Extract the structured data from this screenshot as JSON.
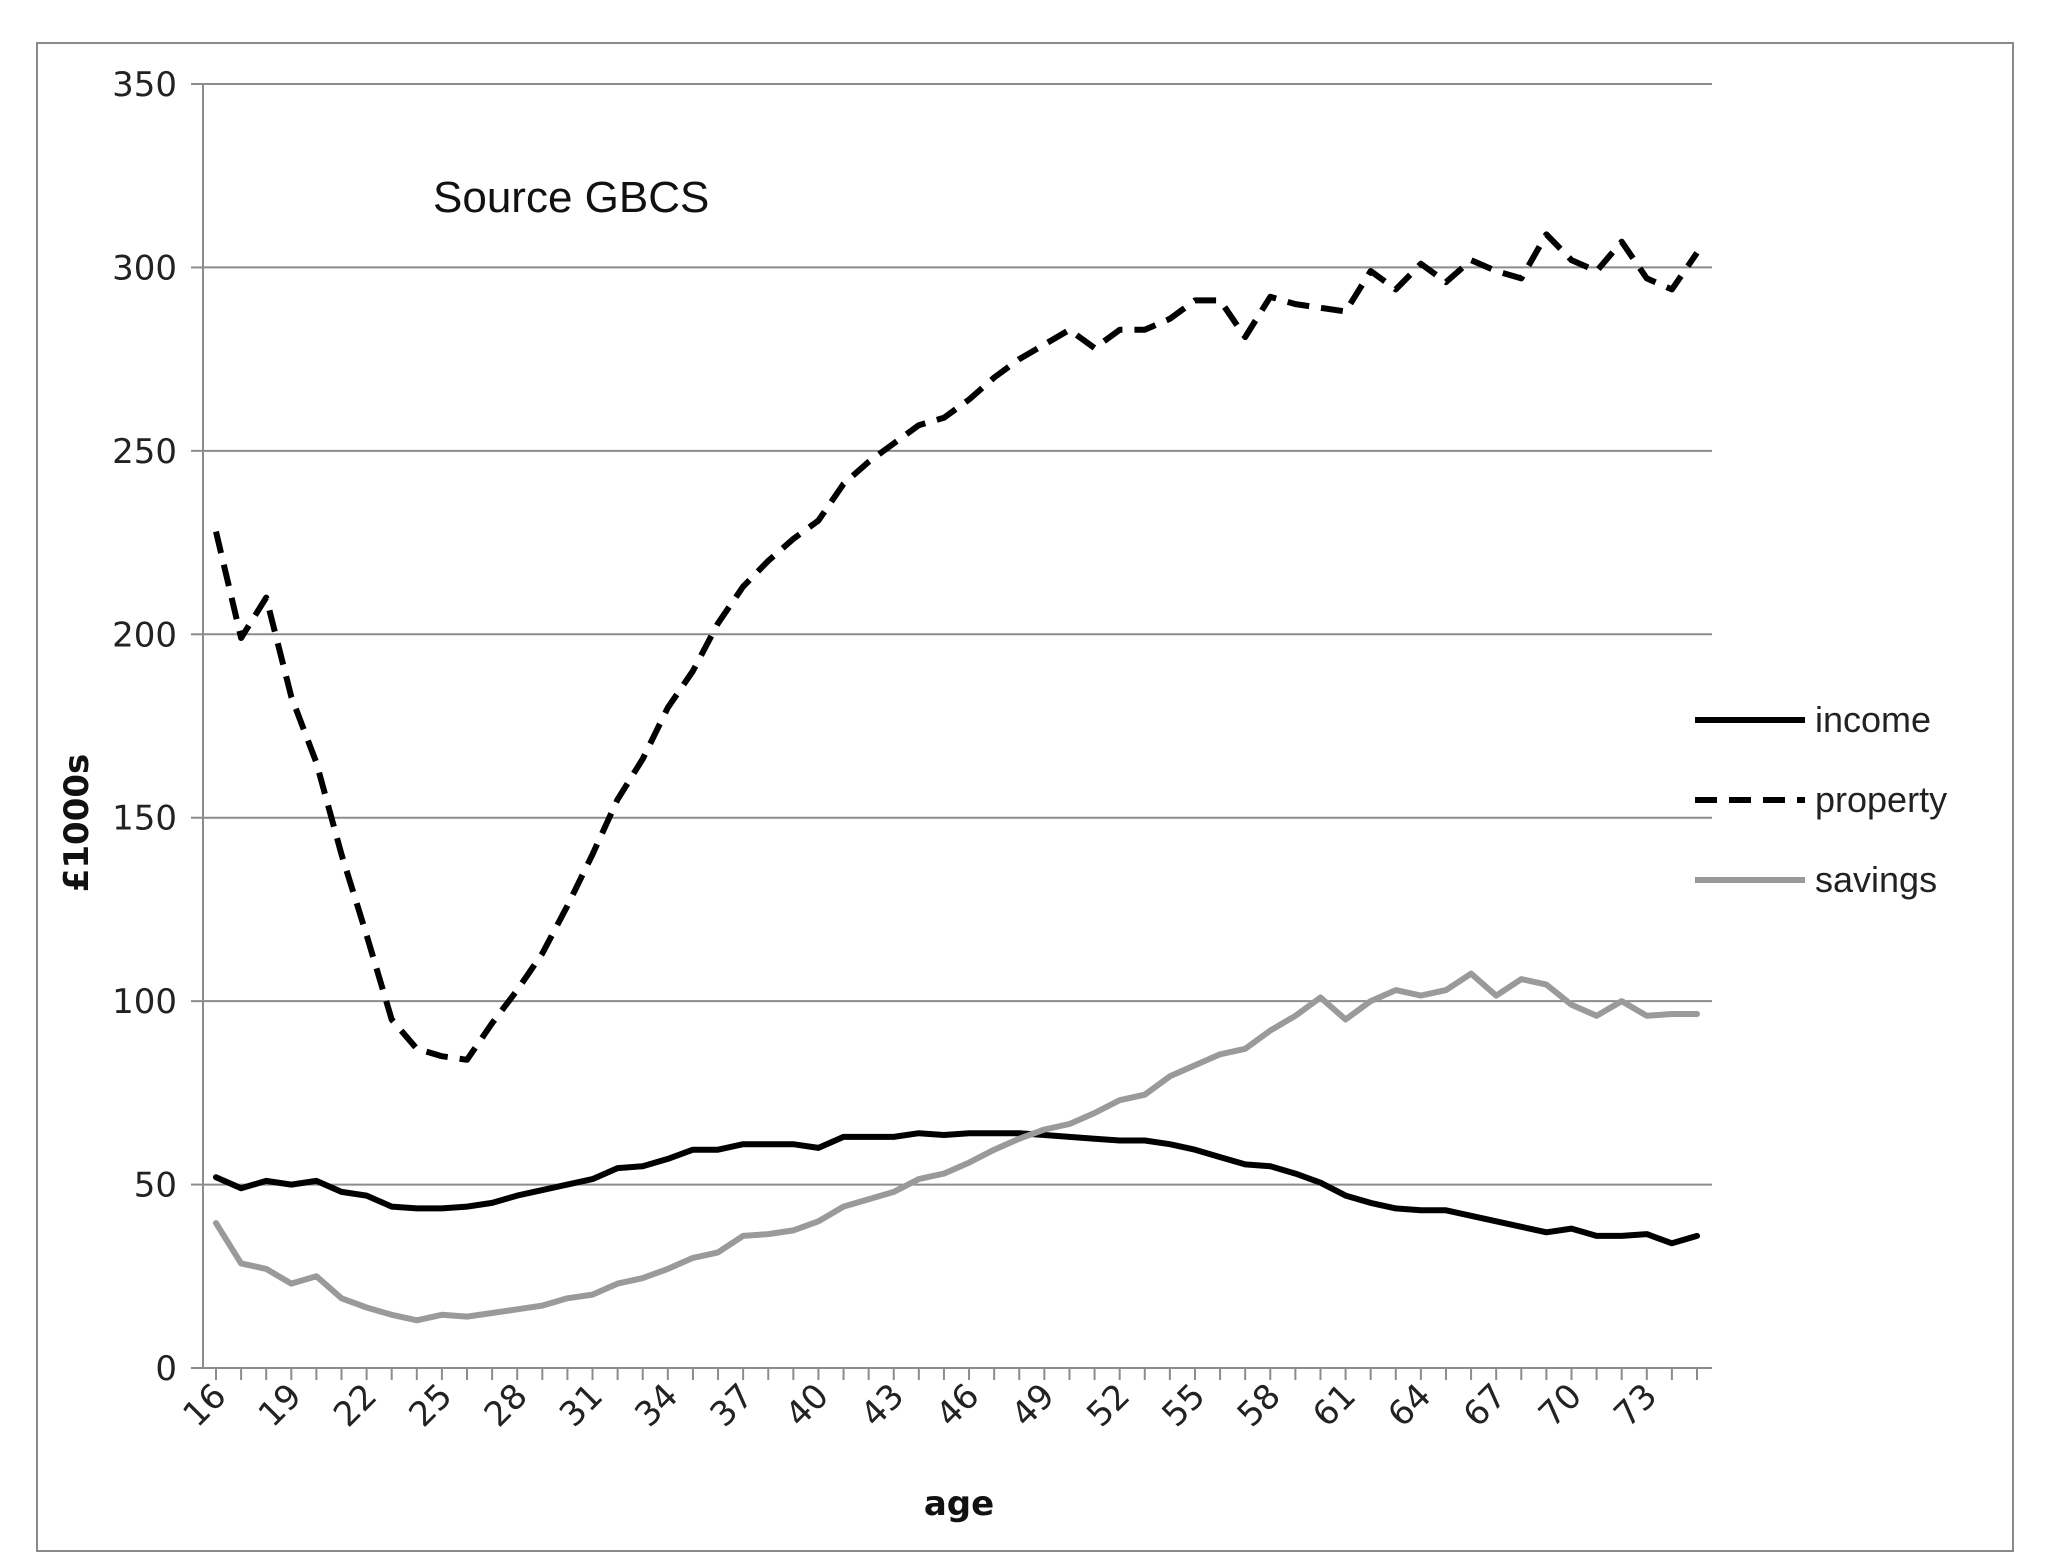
{
  "chart_data": {
    "type": "line",
    "title": "",
    "annotation": "Source GBCS",
    "xlabel": "age",
    "ylabel": "£1000s",
    "xlim": [
      16,
      75
    ],
    "ylim": [
      0,
      350
    ],
    "y_ticks": [
      0,
      50,
      100,
      150,
      200,
      250,
      300,
      350
    ],
    "x_tick_labels": [
      "16",
      "19",
      "22",
      "25",
      "28",
      "31",
      "34",
      "37",
      "40",
      "43",
      "46",
      "49",
      "52",
      "55",
      "58",
      "61",
      "64",
      "67",
      "70",
      "73"
    ],
    "grid": "horizontal",
    "legend_position": "right",
    "x": [
      16,
      17,
      18,
      19,
      20,
      21,
      22,
      23,
      24,
      25,
      26,
      27,
      28,
      29,
      30,
      31,
      32,
      33,
      34,
      35,
      36,
      37,
      38,
      39,
      40,
      41,
      42,
      43,
      44,
      45,
      46,
      47,
      48,
      49,
      50,
      51,
      52,
      53,
      54,
      55,
      56,
      57,
      58,
      59,
      60,
      61,
      62,
      63,
      64,
      65,
      66,
      67,
      68,
      69,
      70,
      71,
      72,
      73,
      74,
      75
    ],
    "series": [
      {
        "name": "income",
        "style": "solid",
        "color": "#000000",
        "values": [
          52,
          49,
          51,
          50,
          51,
          48,
          47,
          44,
          43.5,
          43.5,
          44,
          45,
          47,
          48.5,
          50,
          51.5,
          54.5,
          55,
          57,
          59.5,
          59.5,
          61,
          61,
          61,
          60,
          63,
          63,
          63,
          64,
          63.5,
          64,
          64,
          64,
          63.5,
          63,
          62.5,
          62,
          62,
          61,
          59.5,
          57.5,
          55.5,
          55,
          53,
          50.5,
          47,
          45,
          43.5,
          43,
          43,
          41.5,
          40,
          38.5,
          37,
          38,
          36,
          36,
          36.5,
          34,
          36
        ]
      },
      {
        "name": "property",
        "style": "dashed",
        "color": "#000000",
        "values": [
          228,
          199,
          210,
          183,
          165,
          140,
          118,
          95,
          87,
          85,
          84,
          94,
          103,
          113,
          126,
          140,
          155,
          166,
          180,
          190,
          203,
          213,
          220,
          226,
          231,
          241,
          247,
          252,
          257,
          259,
          264,
          270,
          275,
          279,
          283,
          278,
          283,
          283,
          286,
          291,
          291,
          281,
          292,
          290,
          289,
          288,
          299,
          294,
          301,
          296,
          302,
          299,
          297,
          309,
          302,
          299,
          307,
          297,
          294,
          304
        ]
      },
      {
        "name": "savings",
        "style": "solid",
        "color": "#9a9a9a",
        "values": [
          39.5,
          28.5,
          27,
          23,
          25,
          19,
          16.5,
          14.5,
          13,
          14.5,
          14,
          15,
          16,
          17,
          19,
          20,
          23,
          24.5,
          27,
          30,
          31.5,
          36,
          36.5,
          37.5,
          40,
          44,
          46,
          48,
          51.5,
          53,
          56,
          59.5,
          62.5,
          65,
          66.5,
          69.5,
          73,
          74.5,
          79.5,
          82.5,
          85.5,
          87,
          92,
          96,
          101,
          95,
          100,
          103,
          101.5,
          103,
          107.5,
          101.5,
          106,
          104.5,
          99,
          96,
          100,
          96,
          96.5,
          96.5
        ]
      }
    ]
  }
}
